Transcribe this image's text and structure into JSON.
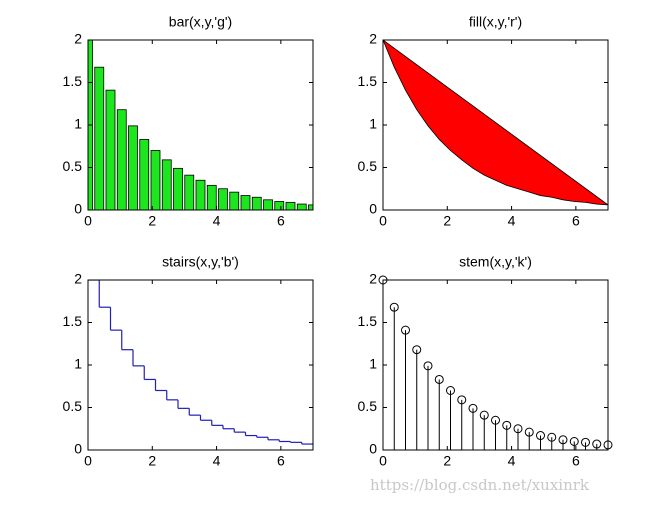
{
  "chart_data": [
    {
      "type": "bar",
      "title": "bar(x,y,'g')",
      "color": "#1ee61e",
      "x": [
        0,
        0.35,
        0.7,
        1.05,
        1.4,
        1.75,
        2.1,
        2.45,
        2.8,
        3.15,
        3.5,
        3.85,
        4.2,
        4.55,
        4.9,
        5.25,
        5.6,
        5.95,
        6.3,
        6.65,
        7
      ],
      "values": [
        2,
        1.68,
        1.41,
        1.18,
        0.99,
        0.83,
        0.7,
        0.59,
        0.49,
        0.41,
        0.35,
        0.29,
        0.25,
        0.21,
        0.17,
        0.15,
        0.12,
        0.1,
        0.09,
        0.07,
        0.06
      ],
      "xlim": [
        0,
        7
      ],
      "ylim": [
        0,
        2
      ],
      "xticks": [
        0,
        2,
        4,
        6
      ],
      "yticks": [
        0,
        0.5,
        1,
        1.5,
        2
      ]
    },
    {
      "type": "fill",
      "title": "fill(x,y,'r')",
      "color": "#ff0000",
      "x": [
        0,
        0.35,
        0.7,
        1.05,
        1.4,
        1.75,
        2.1,
        2.45,
        2.8,
        3.15,
        3.5,
        3.85,
        4.2,
        4.55,
        4.9,
        5.25,
        5.6,
        5.95,
        6.3,
        6.65,
        7
      ],
      "values": [
        2,
        1.68,
        1.41,
        1.18,
        0.99,
        0.83,
        0.7,
        0.59,
        0.49,
        0.41,
        0.35,
        0.29,
        0.25,
        0.21,
        0.17,
        0.15,
        0.12,
        0.1,
        0.09,
        0.07,
        0.06
      ],
      "xlim": [
        0,
        7
      ],
      "ylim": [
        0,
        2
      ],
      "xticks": [
        0,
        2,
        4,
        6
      ],
      "yticks": [
        0,
        0.5,
        1,
        1.5,
        2
      ]
    },
    {
      "type": "stairs",
      "title": "stairs(x,y,'b')",
      "color": "#2020b0",
      "x": [
        0,
        0.35,
        0.7,
        1.05,
        1.4,
        1.75,
        2.1,
        2.45,
        2.8,
        3.15,
        3.5,
        3.85,
        4.2,
        4.55,
        4.9,
        5.25,
        5.6,
        5.95,
        6.3,
        6.65,
        7
      ],
      "values": [
        2,
        1.68,
        1.41,
        1.18,
        0.99,
        0.83,
        0.7,
        0.59,
        0.49,
        0.41,
        0.35,
        0.29,
        0.25,
        0.21,
        0.17,
        0.15,
        0.12,
        0.1,
        0.09,
        0.07,
        0.06
      ],
      "xlim": [
        0,
        7
      ],
      "ylim": [
        0,
        2
      ],
      "xticks": [
        0,
        2,
        4,
        6
      ],
      "yticks": [
        0,
        0.5,
        1,
        1.5,
        2
      ]
    },
    {
      "type": "stem",
      "title": "stem(x,y,'k')",
      "color": "#000000",
      "x": [
        0,
        0.35,
        0.7,
        1.05,
        1.4,
        1.75,
        2.1,
        2.45,
        2.8,
        3.15,
        3.5,
        3.85,
        4.2,
        4.55,
        4.9,
        5.25,
        5.6,
        5.95,
        6.3,
        6.65,
        7
      ],
      "values": [
        2,
        1.68,
        1.41,
        1.18,
        0.99,
        0.83,
        0.7,
        0.59,
        0.49,
        0.41,
        0.35,
        0.29,
        0.25,
        0.21,
        0.17,
        0.15,
        0.12,
        0.1,
        0.09,
        0.07,
        0.06
      ],
      "xlim": [
        0,
        7
      ],
      "ylim": [
        0,
        2
      ],
      "xticks": [
        0,
        2,
        4,
        6
      ],
      "yticks": [
        0,
        0.5,
        1,
        1.5,
        2
      ]
    }
  ],
  "watermark": "https://blog.csdn.net/xuxinrk"
}
